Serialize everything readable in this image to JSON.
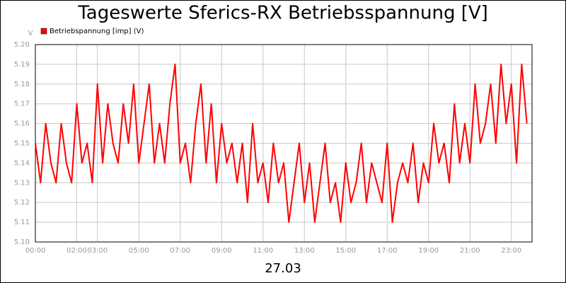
{
  "chart_data": {
    "type": "line",
    "title": "Tageswerte Sferics-RX Betriebsspannung [V]",
    "xlabel": "27.03",
    "ylabel": "V",
    "x": [
      0,
      0.25,
      0.5,
      0.75,
      1,
      1.25,
      1.5,
      1.75,
      2,
      2.25,
      2.5,
      2.75,
      3,
      3.25,
      3.5,
      3.75,
      4,
      4.25,
      4.5,
      4.75,
      5,
      5.25,
      5.5,
      5.75,
      6,
      6.25,
      6.5,
      6.75,
      7,
      7.25,
      7.5,
      7.75,
      8,
      8.25,
      8.5,
      8.75,
      9,
      9.25,
      9.5,
      9.75,
      10,
      10.25,
      10.5,
      10.75,
      11,
      11.25,
      11.5,
      11.75,
      12,
      12.25,
      12.5,
      12.75,
      13,
      13.25,
      13.5,
      13.75,
      14,
      14.25,
      14.5,
      14.75,
      15,
      15.25,
      15.5,
      15.75,
      16,
      16.25,
      16.5,
      16.75,
      17,
      17.25,
      17.5,
      17.75,
      18,
      18.25,
      18.5,
      18.75,
      19,
      19.25,
      19.5,
      19.75,
      20,
      20.25,
      20.5,
      20.75,
      21,
      21.25,
      21.5,
      21.75,
      22,
      22.25,
      22.5,
      22.75,
      23,
      23.25,
      23.5,
      23.75
    ],
    "series": [
      {
        "name": "Betriebspannung [imp] (V)",
        "color": "#ff0000",
        "values": [
          5.15,
          5.13,
          5.16,
          5.14,
          5.13,
          5.16,
          5.14,
          5.13,
          5.17,
          5.14,
          5.15,
          5.13,
          5.18,
          5.14,
          5.17,
          5.15,
          5.14,
          5.17,
          5.15,
          5.18,
          5.14,
          5.16,
          5.18,
          5.14,
          5.16,
          5.14,
          5.17,
          5.19,
          5.14,
          5.15,
          5.13,
          5.16,
          5.18,
          5.14,
          5.17,
          5.13,
          5.16,
          5.14,
          5.15,
          5.13,
          5.15,
          5.12,
          5.16,
          5.13,
          5.14,
          5.12,
          5.15,
          5.13,
          5.14,
          5.11,
          5.13,
          5.15,
          5.12,
          5.14,
          5.11,
          5.13,
          5.15,
          5.12,
          5.13,
          5.11,
          5.14,
          5.12,
          5.13,
          5.15,
          5.12,
          5.14,
          5.13,
          5.12,
          5.15,
          5.11,
          5.13,
          5.14,
          5.13,
          5.15,
          5.12,
          5.14,
          5.13,
          5.16,
          5.14,
          5.15,
          5.13,
          5.17,
          5.14,
          5.16,
          5.14,
          5.18,
          5.15,
          5.16,
          5.18,
          5.15,
          5.19,
          5.16,
          5.18,
          5.14,
          5.19,
          5.16
        ]
      }
    ],
    "xlim": [
      0,
      24
    ],
    "xticks": [
      {
        "value": 0,
        "label": "00:00"
      },
      {
        "value": 2,
        "label": "02:00"
      },
      {
        "value": 3,
        "label": "03:00"
      },
      {
        "value": 5,
        "label": "05:00"
      },
      {
        "value": 7,
        "label": "07:00"
      },
      {
        "value": 9,
        "label": "09:00"
      },
      {
        "value": 11,
        "label": "11:00"
      },
      {
        "value": 13,
        "label": "13:00"
      },
      {
        "value": 15,
        "label": "15:00"
      },
      {
        "value": 17,
        "label": "17:00"
      },
      {
        "value": 19,
        "label": "19:00"
      },
      {
        "value": 21,
        "label": "21:00"
      },
      {
        "value": 23,
        "label": "23:00"
      }
    ],
    "ylim": [
      5.1,
      5.2
    ],
    "yticks": [
      {
        "value": 5.1,
        "label": "5.10"
      },
      5.11,
      5.12,
      5.13,
      5.14,
      5.15,
      5.16,
      5.17,
      5.18,
      5.19,
      {
        "value": 5.2,
        "label": "5.20"
      }
    ],
    "grid": true
  }
}
